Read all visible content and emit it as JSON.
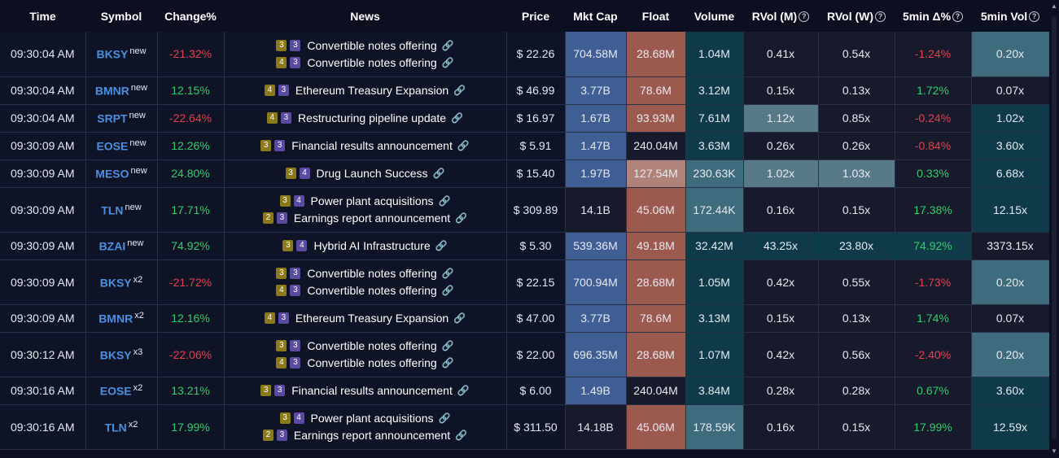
{
  "headers": {
    "time": "Time",
    "symbol": "Symbol",
    "change": "Change%",
    "news": "News",
    "price": "Price",
    "mktcap": "Mkt Cap",
    "float": "Float",
    "volume": "Volume",
    "rvol_m": "RVol (M)",
    "rvol_w": "RVol (W)",
    "delta5": "5min Δ%",
    "vol5": "5min Vol"
  },
  "help_glyph": "?",
  "link_glyph": "🔗",
  "rows": [
    {
      "time": "09:30:04 AM",
      "symbol": "BKSY",
      "tag": "new",
      "change": "-21.32%",
      "news": [
        {
          "b1": "3",
          "b2": "3",
          "text": "Convertible notes offering"
        },
        {
          "b1": "4",
          "b2": "3",
          "text": "Convertible notes offering"
        }
      ],
      "price": "$ 22.26",
      "mktcap": "704.58M",
      "float": "28.68M",
      "volume": "1.04M",
      "rvol_m": "0.41x",
      "rvol_w": "0.54x",
      "delta5": "-1.24%",
      "vol5": "0.20x"
    },
    {
      "time": "09:30:04 AM",
      "symbol": "BMNR",
      "tag": "new",
      "change": "12.15%",
      "news": [
        {
          "b1": "4",
          "b2": "3",
          "text": "Ethereum Treasury Expansion"
        }
      ],
      "price": "$ 46.99",
      "mktcap": "3.77B",
      "float": "78.6M",
      "volume": "3.12M",
      "rvol_m": "0.15x",
      "rvol_w": "0.13x",
      "delta5": "1.72%",
      "vol5": "0.07x"
    },
    {
      "time": "09:30:04 AM",
      "symbol": "SRPT",
      "tag": "new",
      "change": "-22.64%",
      "news": [
        {
          "b1": "4",
          "b2": "3",
          "text": "Restructuring pipeline update"
        }
      ],
      "price": "$ 16.97",
      "mktcap": "1.67B",
      "float": "93.93M",
      "volume": "7.61M",
      "rvol_m": "1.12x",
      "rvol_w": "0.85x",
      "delta5": "-0.24%",
      "vol5": "1.02x"
    },
    {
      "time": "09:30:09 AM",
      "symbol": "EOSE",
      "tag": "new",
      "change": "12.26%",
      "news": [
        {
          "b1": "3",
          "b2": "3",
          "text": "Financial results announcement"
        }
      ],
      "price": "$ 5.91",
      "mktcap": "1.47B",
      "float": "240.04M",
      "volume": "3.63M",
      "rvol_m": "0.26x",
      "rvol_w": "0.26x",
      "delta5": "-0.84%",
      "vol5": "3.60x"
    },
    {
      "time": "09:30:09 AM",
      "symbol": "MESO",
      "tag": "new",
      "change": "24.80%",
      "news": [
        {
          "b1": "3",
          "b2": "4",
          "text": "Drug Launch Success"
        }
      ],
      "price": "$ 15.40",
      "mktcap": "1.97B",
      "float": "127.54M",
      "volume": "230.63K",
      "rvol_m": "1.02x",
      "rvol_w": "1.03x",
      "delta5": "0.33%",
      "vol5": "6.68x"
    },
    {
      "time": "09:30:09 AM",
      "symbol": "TLN",
      "tag": "new",
      "change": "17.71%",
      "news": [
        {
          "b1": "3",
          "b2": "4",
          "text": "Power plant acquisitions"
        },
        {
          "b1": "2",
          "b2": "3",
          "text": "Earnings report announcement"
        }
      ],
      "price": "$ 309.89",
      "mktcap": "14.1B",
      "float": "45.06M",
      "volume": "172.44K",
      "rvol_m": "0.16x",
      "rvol_w": "0.15x",
      "delta5": "17.38%",
      "vol5": "12.15x"
    },
    {
      "time": "09:30:09 AM",
      "symbol": "BZAI",
      "tag": "new",
      "change": "74.92%",
      "news": [
        {
          "b1": "3",
          "b2": "4",
          "text": "Hybrid AI Infrastructure"
        }
      ],
      "price": "$ 5.30",
      "mktcap": "539.36M",
      "float": "49.18M",
      "volume": "32.42M",
      "rvol_m": "43.25x",
      "rvol_w": "23.80x",
      "delta5": "74.92%",
      "vol5": "3373.15x"
    },
    {
      "time": "09:30:09 AM",
      "symbol": "BKSY",
      "tag": "x2",
      "change": "-21.72%",
      "news": [
        {
          "b1": "3",
          "b2": "3",
          "text": "Convertible notes offering"
        },
        {
          "b1": "4",
          "b2": "3",
          "text": "Convertible notes offering"
        }
      ],
      "price": "$ 22.15",
      "mktcap": "700.94M",
      "float": "28.68M",
      "volume": "1.05M",
      "rvol_m": "0.42x",
      "rvol_w": "0.55x",
      "delta5": "-1.73%",
      "vol5": "0.20x"
    },
    {
      "time": "09:30:09 AM",
      "symbol": "BMNR",
      "tag": "x2",
      "change": "12.16%",
      "news": [
        {
          "b1": "4",
          "b2": "3",
          "text": "Ethereum Treasury Expansion"
        }
      ],
      "price": "$ 47.00",
      "mktcap": "3.77B",
      "float": "78.6M",
      "volume": "3.13M",
      "rvol_m": "0.15x",
      "rvol_w": "0.13x",
      "delta5": "1.74%",
      "vol5": "0.07x"
    },
    {
      "time": "09:30:12 AM",
      "symbol": "BKSY",
      "tag": "x3",
      "change": "-22.06%",
      "news": [
        {
          "b1": "3",
          "b2": "3",
          "text": "Convertible notes offering"
        },
        {
          "b1": "4",
          "b2": "3",
          "text": "Convertible notes offering"
        }
      ],
      "price": "$ 22.00",
      "mktcap": "696.35M",
      "float": "28.68M",
      "volume": "1.07M",
      "rvol_m": "0.42x",
      "rvol_w": "0.56x",
      "delta5": "-2.40%",
      "vol5": "0.20x"
    },
    {
      "time": "09:30:16 AM",
      "symbol": "EOSE",
      "tag": "x2",
      "change": "13.21%",
      "news": [
        {
          "b1": "3",
          "b2": "3",
          "text": "Financial results announcement"
        }
      ],
      "price": "$ 6.00",
      "mktcap": "1.49B",
      "float": "240.04M",
      "volume": "3.84M",
      "rvol_m": "0.28x",
      "rvol_w": "0.28x",
      "delta5": "0.67%",
      "vol5": "3.60x"
    },
    {
      "time": "09:30:16 AM",
      "symbol": "TLN",
      "tag": "x2",
      "change": "17.99%",
      "news": [
        {
          "b1": "3",
          "b2": "4",
          "text": "Power plant acquisitions"
        },
        {
          "b1": "2",
          "b2": "3",
          "text": "Earnings report announcement"
        }
      ],
      "price": "$ 311.50",
      "mktcap": "14.18B",
      "float": "45.06M",
      "volume": "178.59K",
      "rvol_m": "0.16x",
      "rvol_w": "0.15x",
      "delta5": "17.99%",
      "vol5": "12.59x"
    }
  ],
  "colors": {
    "background": "#0b0f1f",
    "symbol": "#4a8fe0",
    "negative": "#e2404e",
    "positive": "#2fcf6a",
    "mktcap_high": "#3f5e93",
    "float_high": "#9c5a4f",
    "volume_high": "#0e3a4a",
    "badge_yellow": "#8a7a1a",
    "badge_purple": "#5a4aa0"
  }
}
